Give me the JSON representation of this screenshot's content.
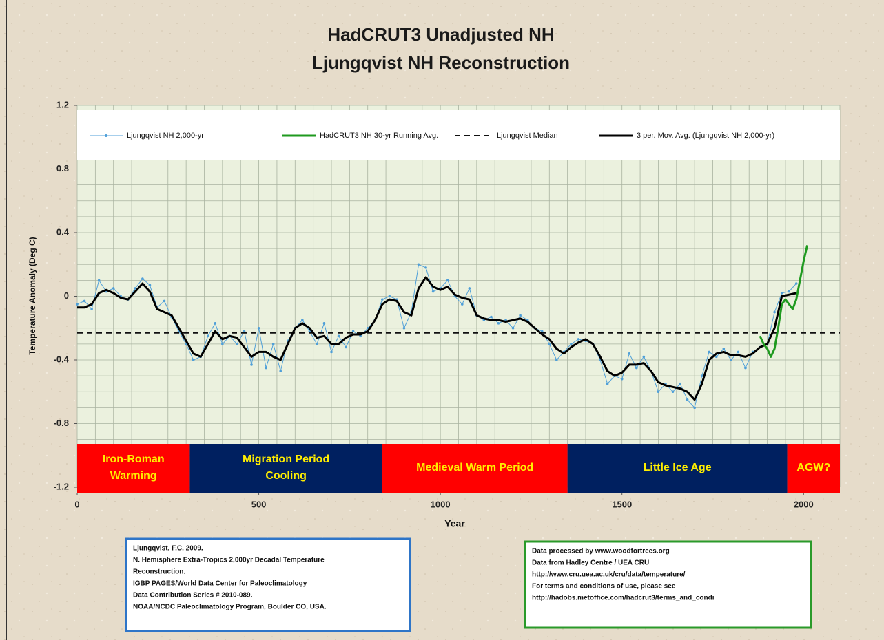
{
  "chart_data": {
    "type": "line",
    "title": [
      "HadCRUT3 Unadjusted NH",
      "Ljungqvist NH Reconstruction"
    ],
    "x_label": "Year",
    "y_label": "Temperature Anomaly (Deg C)",
    "xlim": [
      0,
      2100
    ],
    "ylim": [
      -1.2,
      1.2
    ],
    "xticks": [
      0,
      500,
      1000,
      1500,
      2000
    ],
    "yticks": [
      -1.2,
      -0.8,
      -0.4,
      0,
      0.4,
      0.8,
      1.2
    ],
    "xgrid": [
      0,
      50,
      100,
      150,
      200,
      250,
      300,
      350,
      400,
      450,
      500,
      550,
      600,
      650,
      700,
      750,
      800,
      850,
      900,
      950,
      1000,
      1050,
      1100,
      1150,
      1200,
      1250,
      1300,
      1350,
      1400,
      1450,
      1500,
      1550,
      1600,
      1650,
      1700,
      1750,
      1800,
      1850,
      1900,
      1950,
      2000,
      2050,
      2100
    ],
    "ygrid": [
      -1.2,
      -1.1,
      -1.0,
      -0.9,
      -0.8,
      -0.7,
      -0.6,
      -0.5,
      -0.4,
      -0.3,
      -0.2,
      -0.1,
      0,
      0.1,
      0.2,
      0.3,
      0.4,
      0.5,
      0.6,
      0.7,
      0.8,
      0.9,
      1.0,
      1.1,
      1.2
    ],
    "grid": true,
    "legend": "top",
    "series": [
      {
        "name": "Ljungqvist NH 2,000-yr",
        "color": "#4f9fd8",
        "line_style": "solid",
        "markers": true,
        "width": 1,
        "x": [
          0,
          20,
          40,
          60,
          80,
          100,
          120,
          140,
          160,
          180,
          200,
          220,
          240,
          260,
          280,
          300,
          320,
          340,
          360,
          380,
          400,
          420,
          440,
          460,
          480,
          500,
          520,
          540,
          560,
          580,
          600,
          620,
          640,
          660,
          680,
          700,
          720,
          740,
          760,
          780,
          800,
          820,
          840,
          860,
          880,
          900,
          920,
          940,
          960,
          980,
          1000,
          1020,
          1040,
          1060,
          1080,
          1100,
          1120,
          1140,
          1160,
          1180,
          1200,
          1220,
          1240,
          1260,
          1280,
          1300,
          1320,
          1340,
          1360,
          1380,
          1400,
          1420,
          1440,
          1460,
          1480,
          1500,
          1520,
          1540,
          1560,
          1580,
          1600,
          1620,
          1640,
          1660,
          1680,
          1700,
          1720,
          1740,
          1760,
          1780,
          1800,
          1820,
          1840,
          1860,
          1880,
          1900,
          1920,
          1940,
          1960,
          1980
        ],
        "values": [
          -0.05,
          -0.03,
          -0.08,
          0.1,
          0.03,
          0.05,
          0.0,
          -0.02,
          0.05,
          0.11,
          0.07,
          -0.07,
          -0.03,
          -0.13,
          -0.22,
          -0.3,
          -0.4,
          -0.38,
          -0.25,
          -0.17,
          -0.3,
          -0.25,
          -0.3,
          -0.22,
          -0.43,
          -0.2,
          -0.45,
          -0.3,
          -0.47,
          -0.28,
          -0.2,
          -0.15,
          -0.22,
          -0.3,
          -0.17,
          -0.35,
          -0.25,
          -0.32,
          -0.22,
          -0.25,
          -0.2,
          -0.15,
          -0.02,
          0.0,
          -0.02,
          -0.2,
          -0.1,
          0.2,
          0.18,
          0.03,
          0.05,
          0.1,
          0.0,
          -0.05,
          0.05,
          -0.12,
          -0.15,
          -0.13,
          -0.17,
          -0.15,
          -0.2,
          -0.12,
          -0.15,
          -0.2,
          -0.22,
          -0.3,
          -0.4,
          -0.35,
          -0.3,
          -0.27,
          -0.28,
          -0.3,
          -0.4,
          -0.55,
          -0.5,
          -0.52,
          -0.36,
          -0.45,
          -0.38,
          -0.47,
          -0.6,
          -0.55,
          -0.6,
          -0.55,
          -0.65,
          -0.7,
          -0.5,
          -0.35,
          -0.38,
          -0.33,
          -0.4,
          -0.35,
          -0.45,
          -0.35,
          -0.32,
          -0.3,
          -0.1,
          0.02,
          0.03,
          0.08
        ]
      },
      {
        "name": "HadCRUT3 NH 30-yr Running Avg.",
        "color": "#1f9a1f",
        "line_style": "solid",
        "markers": false,
        "width": 3,
        "x": [
          1880,
          1890,
          1900,
          1910,
          1920,
          1930,
          1940,
          1950,
          1960,
          1970,
          1980,
          1990,
          2000,
          2010
        ],
        "values": [
          -0.25,
          -0.3,
          -0.33,
          -0.38,
          -0.33,
          -0.2,
          -0.05,
          -0.02,
          -0.05,
          -0.08,
          -0.02,
          0.1,
          0.22,
          0.32
        ]
      },
      {
        "name": "Ljungqvist Median",
        "color": "#111111",
        "line_style": "dashed",
        "markers": false,
        "width": 2,
        "x": [
          0,
          2100
        ],
        "values": [
          -0.23,
          -0.23
        ]
      },
      {
        "name": "3 per. Mov. Avg. (Ljungqvist NH 2,000-yr)",
        "color": "#000000",
        "line_style": "solid",
        "markers": false,
        "width": 3,
        "x": [
          0,
          20,
          40,
          60,
          80,
          100,
          120,
          140,
          160,
          180,
          200,
          220,
          240,
          260,
          280,
          300,
          320,
          340,
          360,
          380,
          400,
          420,
          440,
          460,
          480,
          500,
          520,
          540,
          560,
          580,
          600,
          620,
          640,
          660,
          680,
          700,
          720,
          740,
          760,
          780,
          800,
          820,
          840,
          860,
          880,
          900,
          920,
          940,
          960,
          980,
          1000,
          1020,
          1040,
          1060,
          1080,
          1100,
          1120,
          1140,
          1160,
          1180,
          1200,
          1220,
          1240,
          1260,
          1280,
          1300,
          1320,
          1340,
          1360,
          1380,
          1400,
          1420,
          1440,
          1460,
          1480,
          1500,
          1520,
          1540,
          1560,
          1580,
          1600,
          1620,
          1640,
          1660,
          1680,
          1700,
          1720,
          1740,
          1760,
          1780,
          1800,
          1820,
          1840,
          1860,
          1880,
          1900,
          1920,
          1940,
          1960,
          1980
        ],
        "values": [
          -0.07,
          -0.07,
          -0.05,
          0.02,
          0.04,
          0.02,
          -0.01,
          -0.02,
          0.03,
          0.08,
          0.03,
          -0.08,
          -0.1,
          -0.12,
          -0.2,
          -0.28,
          -0.36,
          -0.38,
          -0.3,
          -0.22,
          -0.27,
          -0.25,
          -0.26,
          -0.32,
          -0.38,
          -0.35,
          -0.35,
          -0.38,
          -0.4,
          -0.3,
          -0.2,
          -0.17,
          -0.2,
          -0.26,
          -0.25,
          -0.3,
          -0.3,
          -0.26,
          -0.24,
          -0.24,
          -0.22,
          -0.15,
          -0.05,
          -0.02,
          -0.03,
          -0.1,
          -0.12,
          0.05,
          0.12,
          0.06,
          0.04,
          0.06,
          0.01,
          -0.01,
          -0.02,
          -0.12,
          -0.14,
          -0.15,
          -0.15,
          -0.16,
          -0.15,
          -0.14,
          -0.16,
          -0.2,
          -0.24,
          -0.27,
          -0.33,
          -0.36,
          -0.32,
          -0.29,
          -0.27,
          -0.3,
          -0.38,
          -0.47,
          -0.5,
          -0.48,
          -0.43,
          -0.43,
          -0.42,
          -0.47,
          -0.54,
          -0.56,
          -0.57,
          -0.58,
          -0.6,
          -0.65,
          -0.55,
          -0.4,
          -0.36,
          -0.35,
          -0.37,
          -0.37,
          -0.38,
          -0.36,
          -0.32,
          -0.3,
          -0.2,
          0.0,
          0.01,
          0.02
        ]
      }
    ],
    "periods": [
      {
        "labels": [
          "Iron-Roman",
          "Warming"
        ],
        "start": 0,
        "end": 310,
        "color": "#ff0000"
      },
      {
        "labels": [
          "Migration Period",
          "Cooling"
        ],
        "start": 310,
        "end": 840,
        "color": "#002060"
      },
      {
        "labels": [
          "Medieval Warm Period"
        ],
        "start": 840,
        "end": 1350,
        "color": "#ff0000"
      },
      {
        "labels": [
          "Little Ice Age"
        ],
        "start": 1350,
        "end": 1955,
        "color": "#002060"
      },
      {
        "labels": [
          "AGW?"
        ],
        "start": 1955,
        "end": 2100,
        "color": "#ff0000"
      }
    ],
    "notes": [
      {
        "color": "#2e75c8",
        "lines": [
          "Ljungqvist, F.C. 2009.",
          "N. Hemisphere Extra-Tropics 2,000yr Decadal Temperature",
          "Reconstruction.",
          "IGBP PAGES/World Data Center for Paleoclimatology",
          "Data Contribution Series # 2010-089.",
          "NOAA/NCDC Paleoclimatology Program, Boulder CO, USA."
        ]
      },
      {
        "color": "#2a9a2a",
        "lines": [
          "Data processed by www.woodfortrees.org",
          "Data from Hadley Centre / UEA CRU",
          "http://www.cru.uea.ac.uk/cru/data/temperature/",
          "For terms and conditions of use, please see",
          "http://hadobs.metoffice.com/hadcrut3/terms_and_condi"
        ]
      }
    ]
  }
}
